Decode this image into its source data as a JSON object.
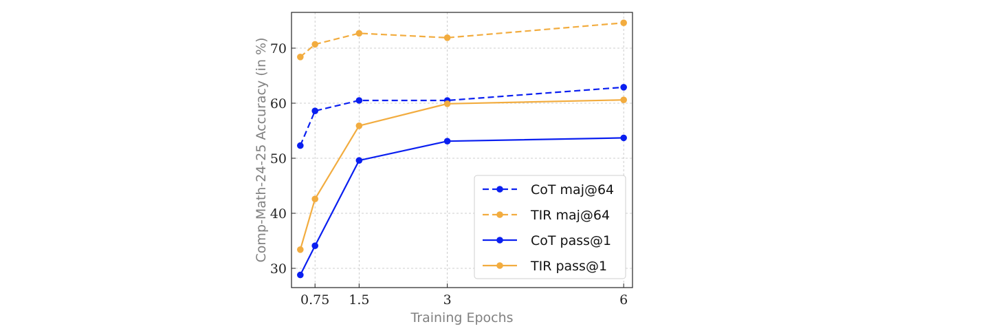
{
  "chart_data": {
    "type": "line",
    "xlabel": "Training Epochs",
    "ylabel": "Comp-Math-24-25 Accuracy (in %)",
    "x_ticks": [
      "0.75",
      "1.5",
      "3",
      "6"
    ],
    "y_ticks": [
      "30",
      "40",
      "50",
      "60",
      "70"
    ],
    "xlim": [
      0.35,
      6.15
    ],
    "ylim": [
      26.5,
      76.5
    ],
    "grid": true,
    "legend_position": "lower-right",
    "series": [
      {
        "name": "CoT maj@64",
        "color": "#0a1ff0",
        "dash": true,
        "x": [
          0.5,
          0.75,
          1.5,
          3,
          6
        ],
        "y": [
          52.3,
          58.6,
          60.5,
          60.5,
          62.9
        ]
      },
      {
        "name": "TIR maj@64",
        "color": "#f2ac3f",
        "dash": true,
        "x": [
          0.5,
          0.75,
          1.5,
          3,
          6
        ],
        "y": [
          68.4,
          70.7,
          72.7,
          71.9,
          74.6
        ]
      },
      {
        "name": "CoT pass@1",
        "color": "#0a1ff0",
        "dash": false,
        "x": [
          0.5,
          0.75,
          1.5,
          3,
          6
        ],
        "y": [
          28.8,
          34.1,
          49.6,
          53.1,
          53.7
        ]
      },
      {
        "name": "TIR pass@1",
        "color": "#f2ac3f",
        "dash": false,
        "x": [
          0.5,
          0.75,
          1.5,
          3,
          6
        ],
        "y": [
          33.4,
          42.6,
          55.9,
          59.9,
          60.6
        ]
      }
    ]
  }
}
